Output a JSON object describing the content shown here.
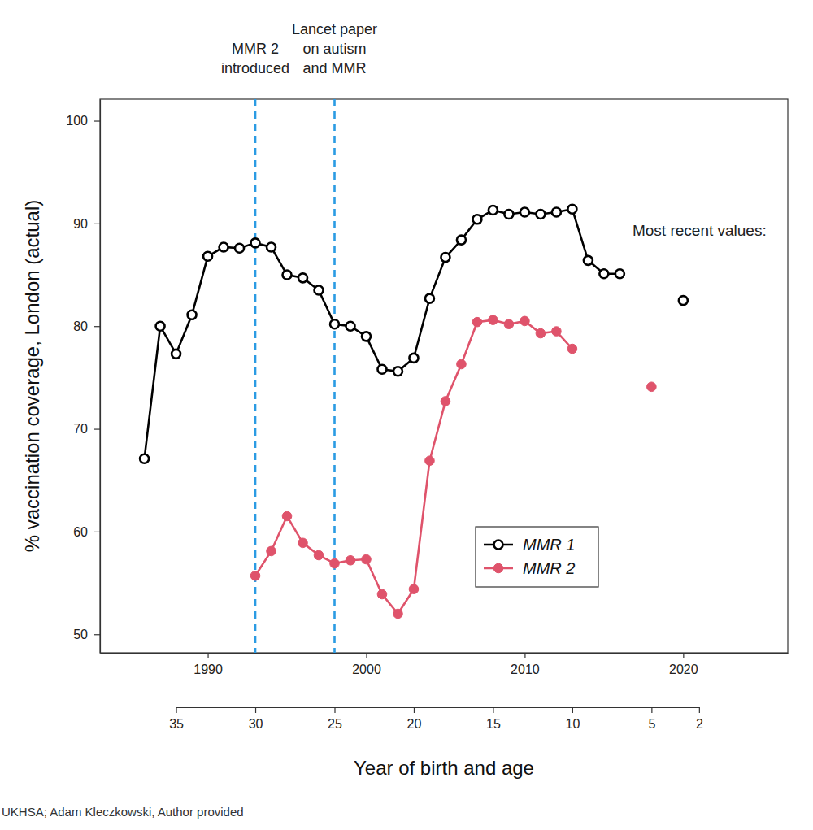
{
  "chart_data": {
    "type": "line",
    "x_label": "Year of birth and age",
    "y_label": "% vaccination coverage, London (actual)",
    "source": "UKHSA; Adam Kleczkowski, Author provided",
    "x": [
      1986,
      1987,
      1988,
      1989,
      1990,
      1991,
      1992,
      1993,
      1994,
      1995,
      1996,
      1997,
      1998,
      1999,
      2000,
      2001,
      2002,
      2003,
      2004,
      2005,
      2006,
      2007,
      2008,
      2009,
      2010,
      2011,
      2012,
      2013,
      2014,
      2015,
      2016,
      2017,
      2018,
      2019,
      2020
    ],
    "series": [
      {
        "name": "MMR 1",
        "color": "#000000",
        "marker": "open-circle",
        "line_style": "solid",
        "values": [
          67.1,
          80.0,
          77.3,
          81.1,
          86.8,
          87.7,
          87.6,
          88.1,
          87.7,
          85.0,
          84.7,
          83.5,
          80.2,
          80.0,
          79.0,
          75.8,
          75.6,
          76.9,
          82.7,
          86.7,
          88.4,
          90.4,
          91.3,
          90.9,
          91.1,
          90.9,
          91.1,
          91.4,
          86.4,
          85.1,
          85.1,
          null,
          null,
          null,
          82.5
        ]
      },
      {
        "name": "MMR 2",
        "color": "#df536b",
        "marker": "circle",
        "line_style": "solid",
        "values": [
          null,
          null,
          null,
          null,
          null,
          null,
          null,
          55.7,
          58.1,
          61.5,
          58.9,
          57.7,
          56.9,
          57.2,
          57.3,
          53.9,
          52.0,
          54.4,
          66.9,
          72.7,
          76.3,
          80.4,
          80.6,
          80.2,
          80.5,
          79.3,
          79.5,
          77.8,
          null,
          null,
          null,
          null,
          74.1,
          null,
          null
        ]
      }
    ],
    "xlim": [
      1983.2,
      2026.6
    ],
    "xticks": [
      1990,
      2000,
      2010,
      2020
    ],
    "ylim": [
      48.2,
      102.1
    ],
    "yticks": [
      50,
      60,
      70,
      80,
      90,
      100
    ],
    "x2lim": [
      1988,
      2021
    ],
    "x2ticks": [
      {
        "value": 1988,
        "label": "35"
      },
      {
        "value": 1993,
        "label": "30"
      },
      {
        "value": 1998,
        "label": "25"
      },
      {
        "value": 2003,
        "label": "20"
      },
      {
        "value": 2008,
        "label": "15"
      },
      {
        "value": 2013,
        "label": "10"
      },
      {
        "value": 2018,
        "label": "5"
      },
      {
        "value": 2021,
        "label": "2"
      }
    ],
    "annotations": [
      {
        "x": 1993,
        "lines": [
          "MMR 2",
          "introduced"
        ]
      },
      {
        "x": 1998,
        "lines": [
          "Lancet paper",
          "on autism",
          "and MMR"
        ]
      },
      {
        "text": "Most recent values:"
      }
    ],
    "legend": "lower right",
    "grid": false
  }
}
